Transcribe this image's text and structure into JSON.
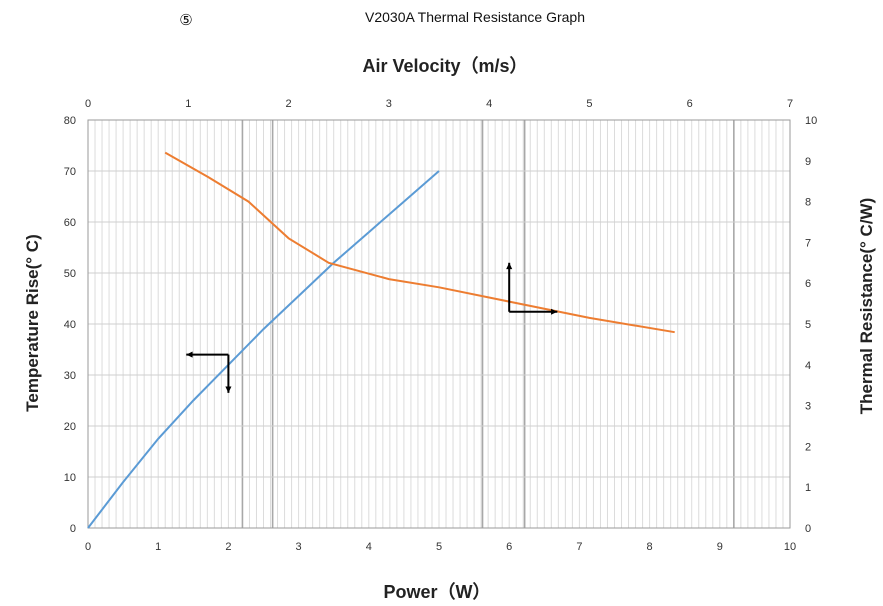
{
  "figure": {
    "number": "⑤",
    "title": "V2030A Thermal Resistance Graph"
  },
  "chart_data": {
    "type": "line",
    "title": "V2030A Thermal Resistance Graph",
    "x_bottom": {
      "label": "Power（W）",
      "range": [
        0,
        10
      ],
      "ticks": [
        "0",
        "1",
        "2",
        "3",
        "4",
        "5",
        "6",
        "7",
        "8",
        "9",
        "10"
      ]
    },
    "x_top": {
      "label": "Air Velocity（m/s）",
      "range": [
        0,
        7
      ],
      "ticks": [
        "0",
        "1",
        "2",
        "3",
        "4",
        "5",
        "6",
        "7"
      ]
    },
    "y_left": {
      "label": "Temperature Rise(° C)",
      "range": [
        0,
        80
      ],
      "ticks": [
        "0",
        "10",
        "20",
        "30",
        "40",
        "50",
        "60",
        "70",
        "80"
      ]
    },
    "y_right": {
      "label": "Thermal Resistance(° C/W)",
      "range": [
        0,
        10
      ],
      "ticks": [
        "0",
        "1",
        "2",
        "3",
        "4",
        "5",
        "6",
        "7",
        "8",
        "9",
        "10"
      ]
    },
    "grid": true,
    "series": [
      {
        "color": "#5b9bd5",
        "x_axis": "Power (W)",
        "y_axis": "Temperature Rise",
        "points": [
          [
            0,
            0
          ],
          [
            0.5,
            9
          ],
          [
            1,
            17.5
          ],
          [
            1.5,
            25
          ],
          [
            2,
            32
          ],
          [
            2.5,
            39
          ],
          [
            3,
            45.5
          ],
          [
            3.5,
            52
          ],
          [
            4,
            58
          ],
          [
            4.5,
            64
          ],
          [
            5,
            70
          ]
        ]
      },
      {
        "color": "#ed7d31",
        "x_axis": "Air Velocity (m/s)",
        "y_axis": "Thermal Resistance",
        "points": [
          [
            0.77,
            9.2
          ],
          [
            1.2,
            8.6
          ],
          [
            1.6,
            8.0
          ],
          [
            2.0,
            7.1
          ],
          [
            2.4,
            6.5
          ],
          [
            3.0,
            6.1
          ],
          [
            3.5,
            5.9
          ],
          [
            4.2,
            5.55
          ],
          [
            5.0,
            5.15
          ],
          [
            5.85,
            4.8
          ]
        ]
      }
    ]
  }
}
